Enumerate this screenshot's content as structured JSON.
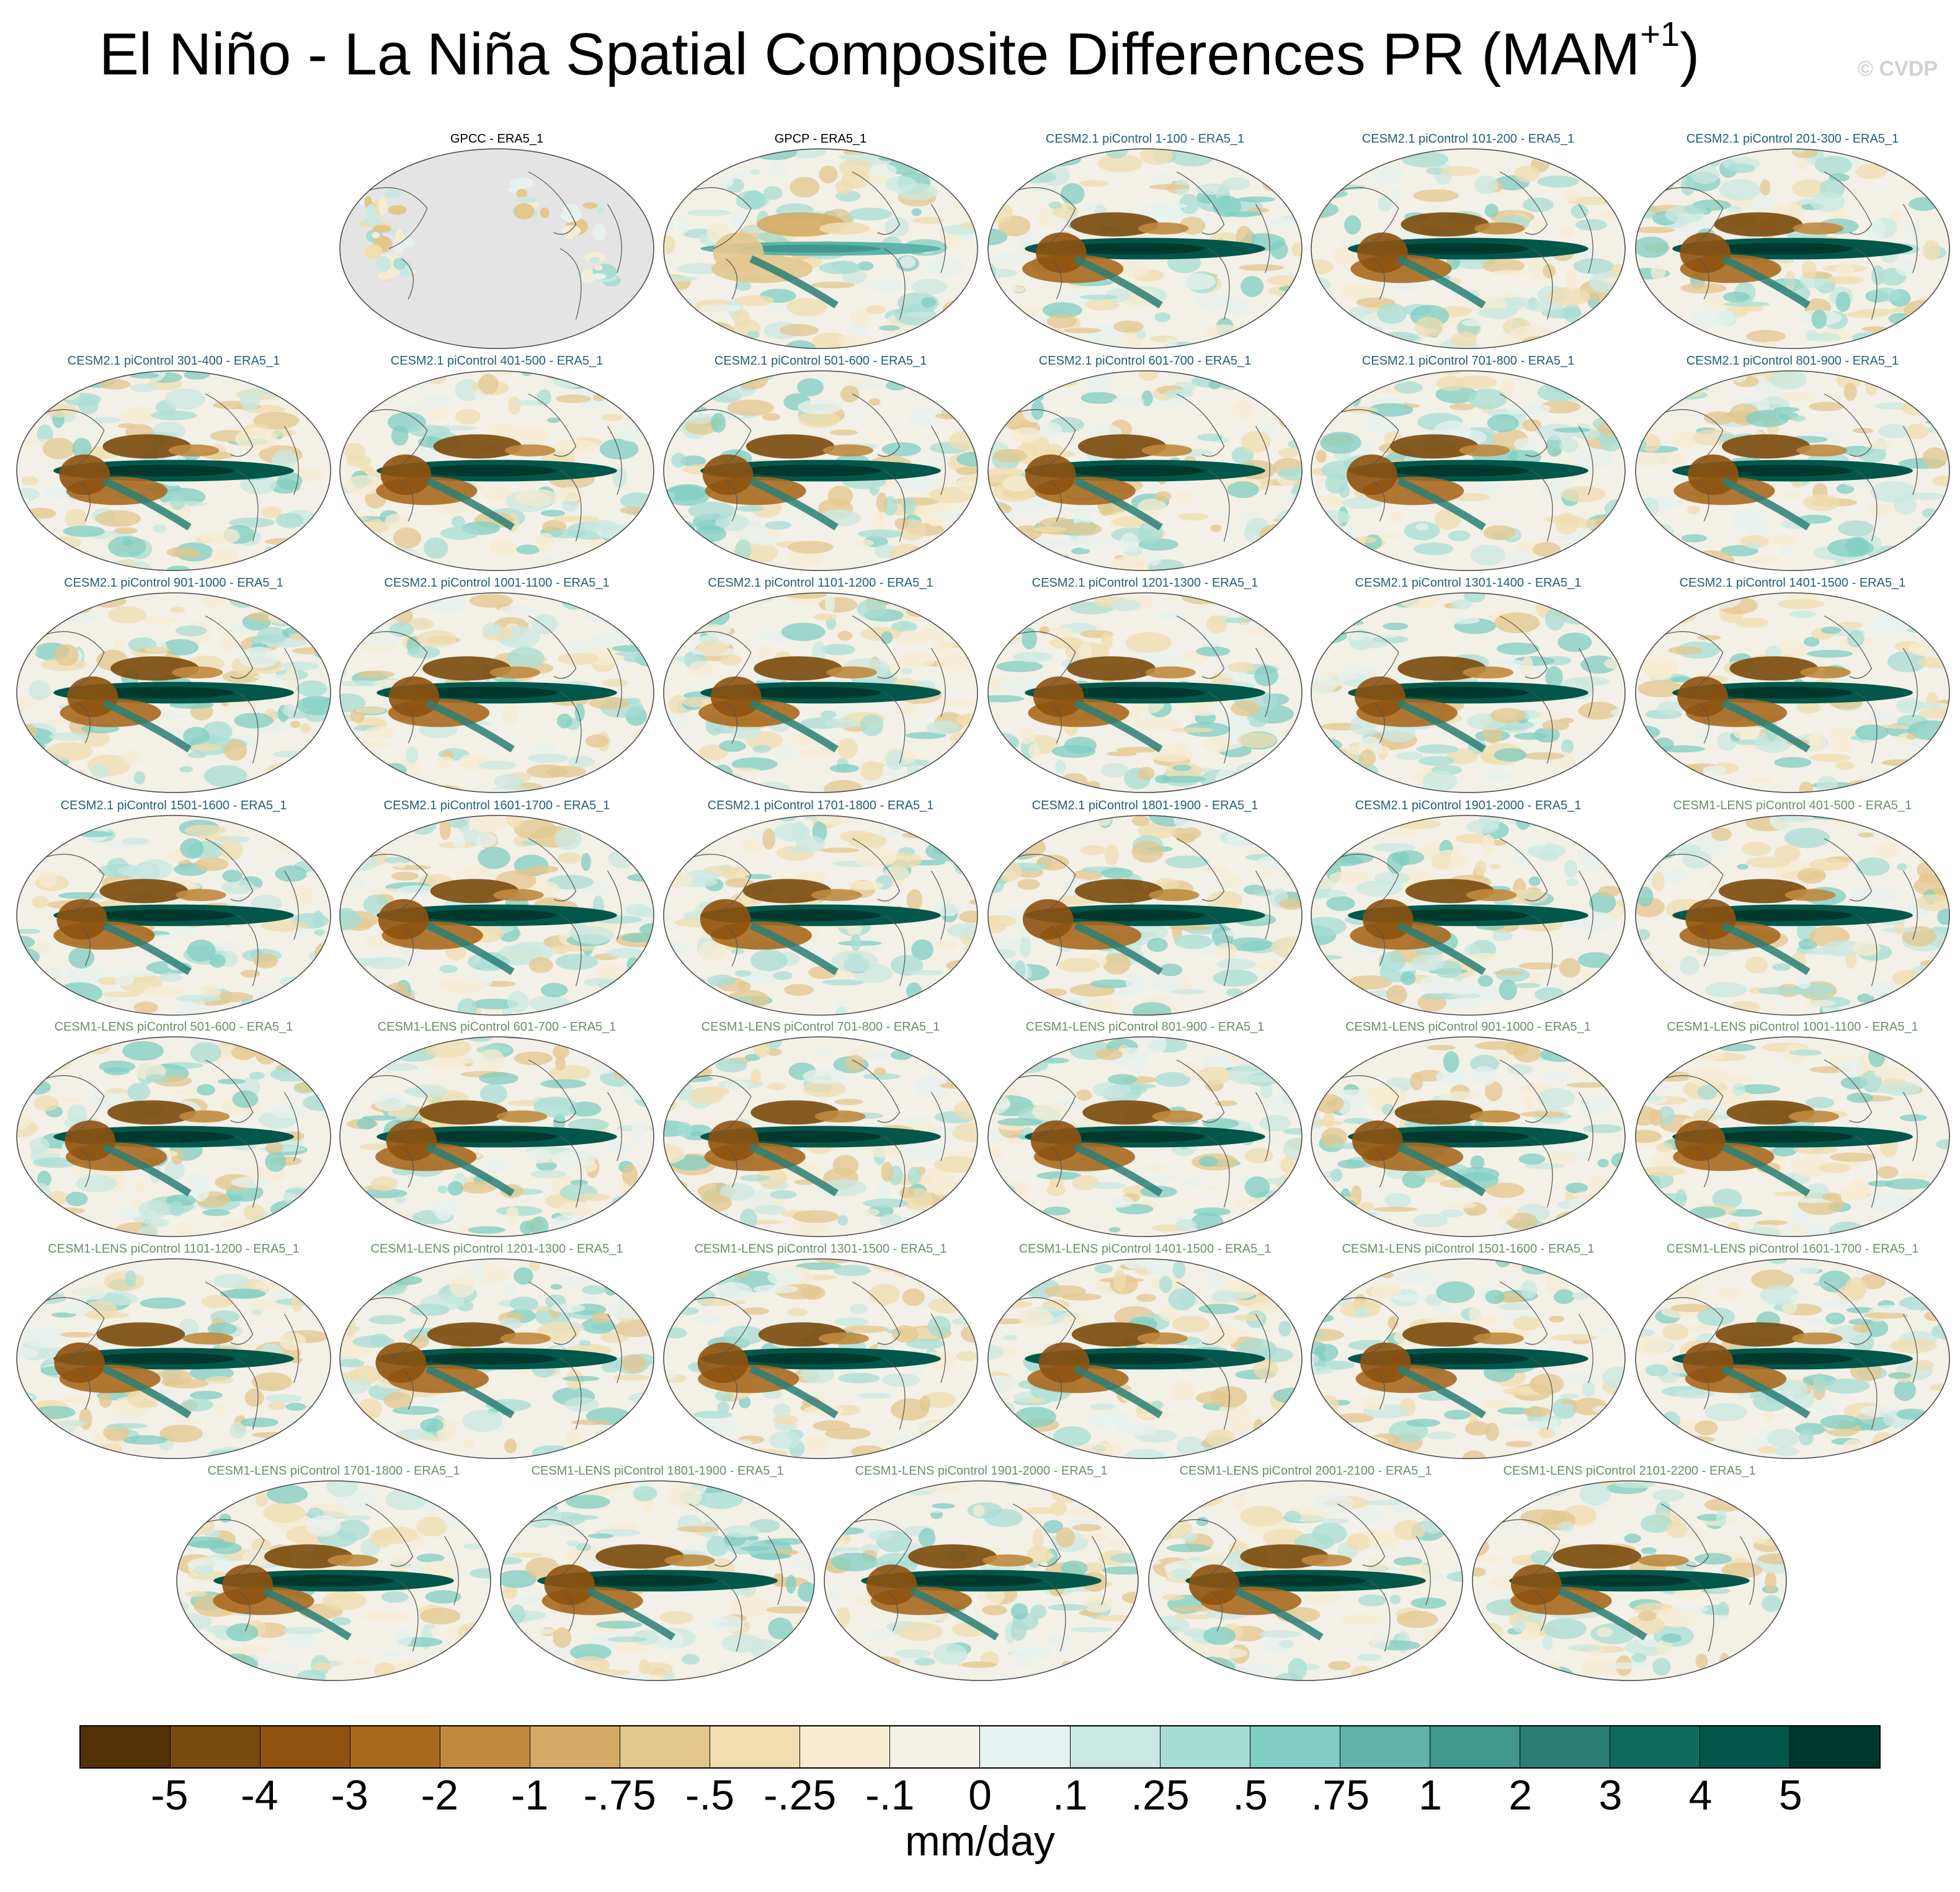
{
  "figure": {
    "title_main": "El Niño - La Niña Spatial Composite Differences PR (MAM",
    "title_sup": "+1",
    "title_close": ")",
    "watermark": "© CVDP"
  },
  "chart_data": {
    "type": "heatmap",
    "variable": "PR",
    "season": "MAM+1",
    "projection": "Robinson global map",
    "colorbar": {
      "units": "mm/day",
      "levels": [
        "-5",
        "-4",
        "-3",
        "-2",
        "-1",
        "-.75",
        "-.5",
        "-.25",
        "-.1",
        "0",
        ".1",
        ".25",
        ".5",
        ".75",
        "1",
        "2",
        "3",
        "4",
        "5"
      ],
      "colors": [
        "#543005",
        "#7a4a0c",
        "#8f520f",
        "#a8691f",
        "#c08a3e",
        "#d4ab65",
        "#e3c78d",
        "#f0ddb0",
        "#f6ecd2",
        "#f3f0e8",
        "#e7f1ef",
        "#c9e8e2",
        "#a8ddd4",
        "#80cdc1",
        "#5fb3a8",
        "#3f978d",
        "#2a7f75",
        "#0f6b5f",
        "#01574a",
        "#00382e"
      ]
    },
    "panels": [
      {
        "title": "GPCC - ERA5_1",
        "group": "obs",
        "land_only": true
      },
      {
        "title": "GPCP - ERA5_1",
        "group": "obs"
      },
      {
        "title": "CESM2.1 piControl 1-100 - ERA5_1",
        "group": "cesm2"
      },
      {
        "title": "CESM2.1 piControl 101-200 - ERA5_1",
        "group": "cesm2"
      },
      {
        "title": "CESM2.1 piControl 201-300 - ERA5_1",
        "group": "cesm2"
      },
      {
        "title": "CESM2.1 piControl 301-400 - ERA5_1",
        "group": "cesm2"
      },
      {
        "title": "CESM2.1 piControl 401-500 - ERA5_1",
        "group": "cesm2"
      },
      {
        "title": "CESM2.1 piControl 501-600 - ERA5_1",
        "group": "cesm2"
      },
      {
        "title": "CESM2.1 piControl 601-700 - ERA5_1",
        "group": "cesm2"
      },
      {
        "title": "CESM2.1 piControl 701-800 - ERA5_1",
        "group": "cesm2"
      },
      {
        "title": "CESM2.1 piControl 801-900 - ERA5_1",
        "group": "cesm2"
      },
      {
        "title": "CESM2.1 piControl 901-1000 - ERA5_1",
        "group": "cesm2"
      },
      {
        "title": "CESM2.1 piControl 1001-1100 - ERA5_1",
        "group": "cesm2"
      },
      {
        "title": "CESM2.1 piControl 1101-1200 - ERA5_1",
        "group": "cesm2"
      },
      {
        "title": "CESM2.1 piControl 1201-1300 - ERA5_1",
        "group": "cesm2"
      },
      {
        "title": "CESM2.1 piControl 1301-1400 - ERA5_1",
        "group": "cesm2"
      },
      {
        "title": "CESM2.1 piControl 1401-1500 - ERA5_1",
        "group": "cesm2"
      },
      {
        "title": "CESM2.1 piControl 1501-1600 - ERA5_1",
        "group": "cesm2"
      },
      {
        "title": "CESM2.1 piControl 1601-1700 - ERA5_1",
        "group": "cesm2"
      },
      {
        "title": "CESM2.1 piControl 1701-1800 - ERA5_1",
        "group": "cesm2"
      },
      {
        "title": "CESM2.1 piControl 1801-1900 - ERA5_1",
        "group": "cesm2"
      },
      {
        "title": "CESM2.1 piControl 1901-2000 - ERA5_1",
        "group": "cesm2"
      },
      {
        "title": "CESM1-LENS piControl 401-500 - ERA5_1",
        "group": "cesm1"
      },
      {
        "title": "CESM1-LENS piControl 501-600 - ERA5_1",
        "group": "cesm1"
      },
      {
        "title": "CESM1-LENS piControl 601-700 - ERA5_1",
        "group": "cesm1"
      },
      {
        "title": "CESM1-LENS piControl 701-800 - ERA5_1",
        "group": "cesm1"
      },
      {
        "title": "CESM1-LENS piControl 801-900 - ERA5_1",
        "group": "cesm1"
      },
      {
        "title": "CESM1-LENS piControl 901-1000 - ERA5_1",
        "group": "cesm1"
      },
      {
        "title": "CESM1-LENS piControl 1001-1100 - ERA5_1",
        "group": "cesm1"
      },
      {
        "title": "CESM1-LENS piControl 1101-1200 - ERA5_1",
        "group": "cesm1"
      },
      {
        "title": "CESM1-LENS piControl 1201-1300 - ERA5_1",
        "group": "cesm1"
      },
      {
        "title": "CESM1-LENS piControl 1301-1500 - ERA5_1",
        "group": "cesm1"
      },
      {
        "title": "CESM1-LENS piControl 1401-1500 - ERA5_1",
        "group": "cesm1"
      },
      {
        "title": "CESM1-LENS piControl 1501-1600 - ERA5_1",
        "group": "cesm1"
      },
      {
        "title": "CESM1-LENS piControl 1601-1700 - ERA5_1",
        "group": "cesm1"
      },
      {
        "title": "CESM1-LENS piControl 1701-1800 - ERA5_1",
        "group": "cesm1"
      },
      {
        "title": "CESM1-LENS piControl 1801-1900 - ERA5_1",
        "group": "cesm1"
      },
      {
        "title": "CESM1-LENS piControl 1901-2000 - ERA5_1",
        "group": "cesm1"
      },
      {
        "title": "CESM1-LENS piControl 2001-2100 - ERA5_1",
        "group": "cesm1"
      },
      {
        "title": "CESM1-LENS piControl 2101-2200 - ERA5_1",
        "group": "cesm1"
      }
    ]
  },
  "style": {
    "group_colors": {
      "obs": "#000000",
      "cesm2": "#1f5f7a",
      "cesm1": "#6b8e6b"
    },
    "ocean_gray": "#e4e4e4",
    "coast_color": "#555555"
  }
}
